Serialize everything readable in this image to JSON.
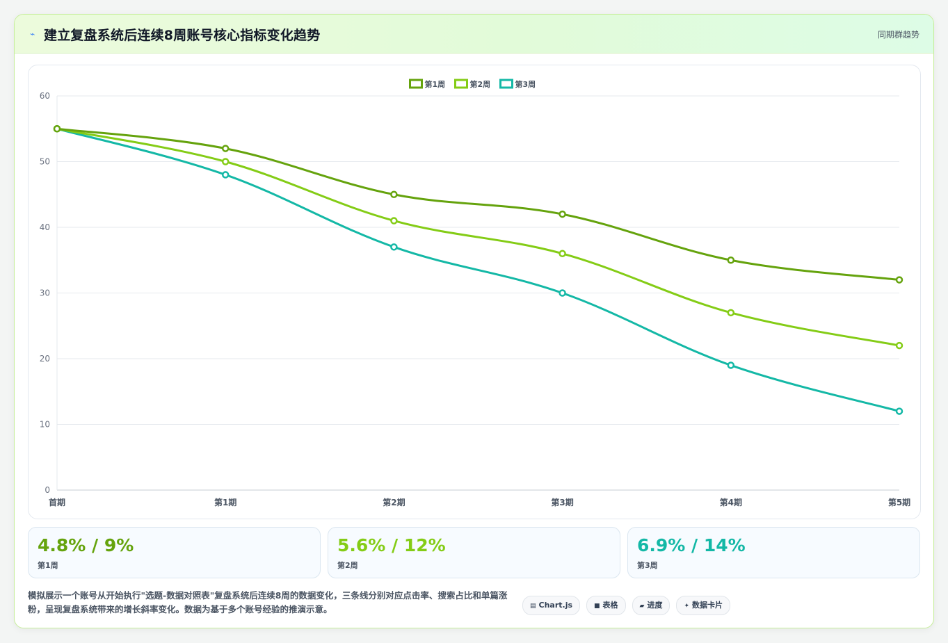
{
  "header": {
    "title": "建立复盘系统后连续8周账号核心指标变化趋势",
    "tag": "同期群趋势",
    "icon": "lightning-icon"
  },
  "chart_data": {
    "type": "line",
    "categories": [
      "首期",
      "第1期",
      "第2期",
      "第3期",
      "第4期",
      "第5期"
    ],
    "series": [
      {
        "name": "第1周",
        "color": "#65a30d",
        "values": [
          55,
          52,
          45,
          42,
          35,
          32
        ]
      },
      {
        "name": "第2周",
        "color": "#84cc16",
        "values": [
          55,
          50,
          41,
          36,
          27,
          22
        ]
      },
      {
        "name": "第3周",
        "color": "#14b8a6",
        "values": [
          55,
          48,
          37,
          30,
          19,
          12
        ]
      }
    ],
    "ylim": [
      0,
      60
    ],
    "yticks": [
      0,
      10,
      20,
      30,
      40,
      50,
      60
    ],
    "grid": true,
    "legend": "top-center",
    "title": "",
    "xlabel": "",
    "ylabel": ""
  },
  "stats": [
    {
      "value": "4.8% / 9%",
      "label": "第1周",
      "color": "#65a30d"
    },
    {
      "value": "5.6% / 12%",
      "label": "第2周",
      "color": "#84cc16"
    },
    {
      "value": "6.9% / 14%",
      "label": "第3周",
      "color": "#14b8a6"
    }
  ],
  "description": "模拟展示一个账号从开始执行\"选题-数据对照表\"复盘系统后连续8周的数据变化，三条线分别对应点击率、搜索占比和单篇涨粉，呈现复盘系统带来的增长斜率变化。数据为基于多个账号经验的推演示意。",
  "chips": [
    {
      "icon": "▤",
      "icon_name": "chart-icon",
      "label": "Chart.js"
    },
    {
      "icon": "■",
      "icon_name": "table-icon",
      "label": "表格"
    },
    {
      "icon": "▰",
      "icon_name": "progress-icon",
      "label": "进度"
    },
    {
      "icon": "✦",
      "icon_name": "sparkle-icon",
      "label": "数据卡片"
    }
  ]
}
